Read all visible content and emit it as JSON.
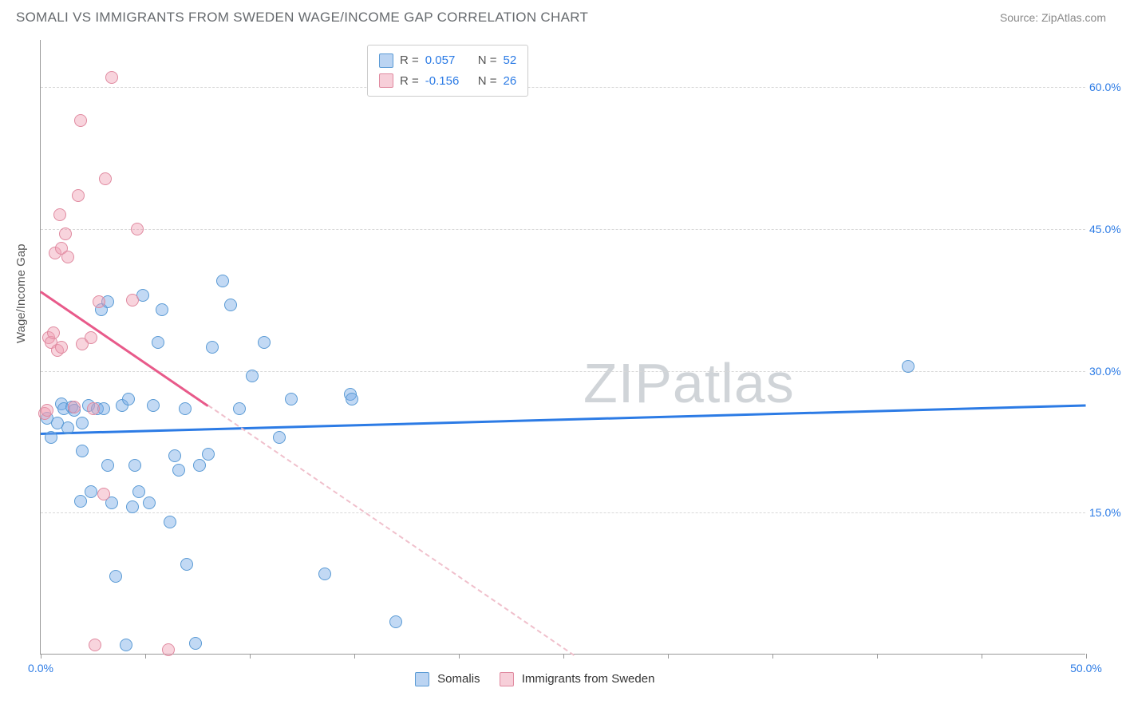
{
  "title": "SOMALI VS IMMIGRANTS FROM SWEDEN WAGE/INCOME GAP CORRELATION CHART",
  "source_label": "Source: ZipAtlas.com",
  "ylabel": "Wage/Income Gap",
  "watermark": {
    "bold": "ZIP",
    "light": "atlas"
  },
  "chart": {
    "type": "scatter",
    "xlim": [
      0,
      50
    ],
    "ylim": [
      0,
      65
    ],
    "x_tick_step": 5,
    "x_tick_labels": {
      "0": "0.0%",
      "50": "50.0%"
    },
    "y_ticks": [
      15,
      30,
      45,
      60
    ],
    "y_tick_labels": [
      "15.0%",
      "30.0%",
      "45.0%",
      "60.0%"
    ],
    "grid_color": "#d8d8d8",
    "axis_color": "#999999",
    "background": "#ffffff",
    "series": [
      {
        "name": "Somalis",
        "color_fill": "rgba(120,170,230,0.45)",
        "color_stroke": "#5b9bd5",
        "marker_size": 16,
        "R": "0.057",
        "N": "52",
        "trend": {
          "x0": 0,
          "y0": 23.5,
          "x1": 50,
          "y1": 26.5,
          "color": "#2c7be5",
          "style": "solid"
        },
        "points": [
          [
            0.3,
            25.0
          ],
          [
            0.5,
            23.0
          ],
          [
            0.8,
            24.5
          ],
          [
            1.0,
            26.5
          ],
          [
            1.1,
            26.0
          ],
          [
            1.3,
            24.0
          ],
          [
            1.5,
            26.2
          ],
          [
            1.6,
            25.8
          ],
          [
            1.9,
            16.2
          ],
          [
            2.0,
            21.5
          ],
          [
            2.0,
            24.5
          ],
          [
            2.3,
            26.3
          ],
          [
            2.4,
            17.2
          ],
          [
            2.7,
            26.0
          ],
          [
            2.9,
            36.5
          ],
          [
            3.0,
            26.0
          ],
          [
            3.2,
            20.0
          ],
          [
            3.2,
            37.3
          ],
          [
            3.4,
            16.0
          ],
          [
            3.6,
            8.3
          ],
          [
            3.9,
            26.3
          ],
          [
            4.1,
            1.0
          ],
          [
            4.2,
            27.0
          ],
          [
            4.4,
            15.6
          ],
          [
            4.5,
            20.0
          ],
          [
            4.7,
            17.2
          ],
          [
            4.9,
            38.0
          ],
          [
            5.2,
            16.0
          ],
          [
            5.4,
            26.3
          ],
          [
            5.6,
            33.0
          ],
          [
            5.8,
            36.5
          ],
          [
            6.2,
            14.0
          ],
          [
            6.4,
            21.0
          ],
          [
            6.6,
            19.5
          ],
          [
            6.9,
            26.0
          ],
          [
            7.0,
            9.5
          ],
          [
            7.4,
            1.2
          ],
          [
            7.6,
            20.0
          ],
          [
            8.0,
            21.2
          ],
          [
            8.2,
            32.5
          ],
          [
            8.7,
            39.5
          ],
          [
            9.1,
            37.0
          ],
          [
            9.5,
            26.0
          ],
          [
            10.1,
            29.5
          ],
          [
            10.7,
            33.0
          ],
          [
            11.4,
            23.0
          ],
          [
            12.0,
            27.0
          ],
          [
            13.6,
            8.5
          ],
          [
            14.8,
            27.5
          ],
          [
            14.9,
            27.0
          ],
          [
            17.0,
            3.5
          ],
          [
            41.5,
            30.5
          ]
        ]
      },
      {
        "name": "Immigrants from Sweden",
        "color_fill": "rgba(240,160,180,0.45)",
        "color_stroke": "#e08aa0",
        "marker_size": 16,
        "R": "-0.156",
        "N": "26",
        "trend": {
          "x0": 0,
          "y0": 38.5,
          "x1": 25.5,
          "y1": 0,
          "color": "#e85a8a",
          "style": "solid_then_dashed",
          "dashed_from_x": 8
        },
        "points": [
          [
            0.2,
            25.5
          ],
          [
            0.3,
            25.8
          ],
          [
            0.4,
            33.5
          ],
          [
            0.5,
            33.0
          ],
          [
            0.6,
            34.0
          ],
          [
            0.7,
            42.5
          ],
          [
            0.8,
            32.2
          ],
          [
            0.9,
            46.5
          ],
          [
            1.0,
            43.0
          ],
          [
            1.0,
            32.5
          ],
          [
            1.2,
            44.5
          ],
          [
            1.3,
            42.0
          ],
          [
            1.6,
            26.2
          ],
          [
            1.8,
            48.5
          ],
          [
            1.9,
            56.5
          ],
          [
            2.0,
            32.8
          ],
          [
            2.4,
            33.5
          ],
          [
            2.5,
            26.0
          ],
          [
            2.6,
            1.0
          ],
          [
            2.8,
            37.3
          ],
          [
            3.0,
            17.0
          ],
          [
            3.1,
            50.3
          ],
          [
            3.4,
            61.0
          ],
          [
            4.4,
            37.5
          ],
          [
            4.6,
            45.0
          ],
          [
            6.1,
            0.5
          ]
        ]
      }
    ]
  },
  "legend_top": [
    {
      "swatch": "b",
      "r_label": "R =",
      "r_val": "0.057",
      "n_label": "N =",
      "n_val": "52"
    },
    {
      "swatch": "p",
      "r_label": "R =",
      "r_val": "-0.156",
      "n_label": "N =",
      "n_val": "26"
    }
  ],
  "legend_bottom": [
    {
      "swatch": "b",
      "label": "Somalis"
    },
    {
      "swatch": "p",
      "label": "Immigrants from Sweden"
    }
  ]
}
